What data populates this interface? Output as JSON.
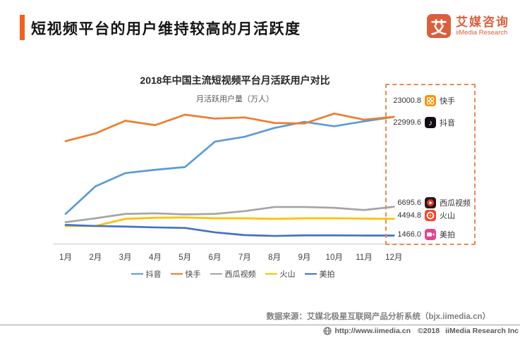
{
  "header": {
    "title": "短视频平台的用户维持较高的月活跃度",
    "logo": {
      "mark": "艾",
      "name_cn": "艾媒咨询",
      "name_en": "iiMedia Research"
    }
  },
  "colors": {
    "accent_orange": "#F2611F",
    "logo_orange": "#DB5F3D",
    "dashed_box_orange": "#EB8A52",
    "axis_line": "#C8C8C8",
    "douyin_line": "#5B9BD5",
    "kuaishou_line": "#ED7D31",
    "xigua_line": "#A5A5A5",
    "huoshan_line": "#FFC000",
    "meipai_line": "#4472C4"
  },
  "chart_data": {
    "type": "line",
    "title": "2018年中国主流短视频平台月活跃用户对比",
    "subtitle": "月活跃用户量（万人）",
    "categories": [
      "1月",
      "2月",
      "3月",
      "4月",
      "5月",
      "6月",
      "7月",
      "8月",
      "9月",
      "10月",
      "11月",
      "12月"
    ],
    "ylim": [
      0,
      28000
    ],
    "grid": false,
    "legend_position": "bottom",
    "series": [
      {
        "name": "抖音",
        "color": "#5B9BD5",
        "end_label": "22999.6",
        "values": [
          5400,
          10400,
          12800,
          13400,
          13900,
          18500,
          19400,
          21000,
          22100,
          21300,
          22200,
          22999.6
        ]
      },
      {
        "name": "快手",
        "color": "#ED7D31",
        "end_label": "23000.8",
        "values": [
          18600,
          20000,
          22300,
          21500,
          23400,
          22700,
          22900,
          21900,
          21800,
          23600,
          22500,
          23000.8
        ]
      },
      {
        "name": "西瓜视频",
        "color": "#A5A5A5",
        "end_label": "6695.6",
        "values": [
          3900,
          4600,
          5400,
          5500,
          5300,
          5400,
          5900,
          6650,
          6650,
          6500,
          6100,
          6695.6
        ]
      },
      {
        "name": "火山",
        "color": "#FFC000",
        "end_label": "4494.8",
        "values": [
          3200,
          3200,
          4500,
          4700,
          4750,
          4600,
          4600,
          4500,
          4600,
          4600,
          4550,
          4494.8
        ]
      },
      {
        "name": "美拍",
        "color": "#4472C4",
        "end_label": "1466.0",
        "values": [
          3400,
          3200,
          3100,
          2950,
          2850,
          2050,
          1550,
          1400,
          1500,
          1500,
          1470,
          1466.0
        ]
      }
    ]
  },
  "source_note": "数据来源：艾媒北极星互联网产品分析系统（bjx.iimedia.cn）",
  "footer": {
    "url": "http://www.iimedia.cn",
    "copyright": "©2018",
    "company": "iiMedia Research Inc"
  }
}
